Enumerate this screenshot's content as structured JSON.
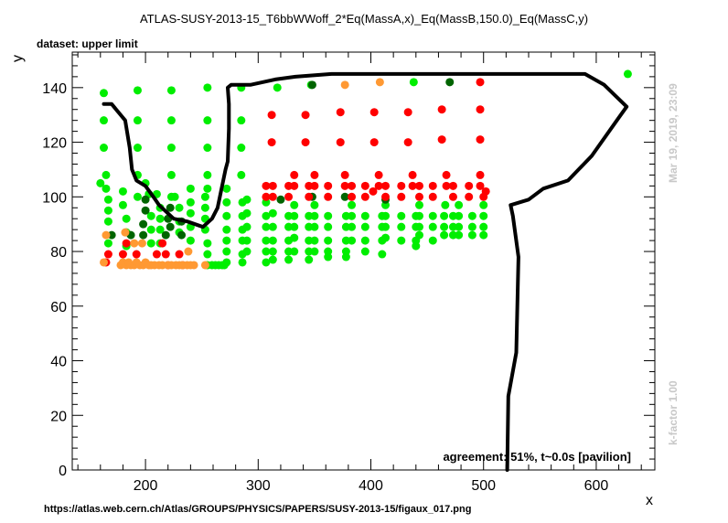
{
  "chart_data": {
    "type": "scatter",
    "title": "ATLAS-SUSY-2013-15_T6bbWWoff_2*Eq(MassA,x)_Eq(MassB,150.0)_Eq(MassC,y)",
    "subtitle": "dataset: upper limit",
    "xlabel": "x",
    "ylabel": "y",
    "xlim": [
      135,
      652
    ],
    "ylim": [
      0,
      153
    ],
    "xticks": [
      200,
      300,
      400,
      500,
      600
    ],
    "yticks": [
      0,
      20,
      40,
      60,
      80,
      100,
      120,
      140
    ],
    "grid": false,
    "timestamp": "Mar 19, 2019, 23:09",
    "kfactor": "k-factor 1.00",
    "agreement": "agreement: 51%, t~0.0s [pavilion]",
    "source_url": "https://atlas.web.cern.ch/Atlas/GROUPS/PHYSICS/PAPERS/SUSY-2013-15/figaux_017.png",
    "colors": {
      "green": "#00ee00",
      "darkgreen": "#006400",
      "red": "#ff0000",
      "orange": "#ff9933",
      "contour": "#000000"
    },
    "series": [
      {
        "color_key": "green",
        "points": [
          [
            160,
            105
          ],
          [
            165,
            108
          ],
          [
            165,
            103
          ],
          [
            167,
            99
          ],
          [
            167,
            95
          ],
          [
            167,
            91
          ],
          [
            167,
            83
          ],
          [
            163,
            118
          ],
          [
            163,
            128
          ],
          [
            163,
            138
          ],
          [
            180,
            102
          ],
          [
            180,
            97
          ],
          [
            183,
            92
          ],
          [
            183,
            87
          ],
          [
            183,
            82
          ],
          [
            193,
            100
          ],
          [
            193,
            108
          ],
          [
            193,
            118
          ],
          [
            193,
            128
          ],
          [
            193,
            139
          ],
          [
            200,
            105
          ],
          [
            203,
            101
          ],
          [
            205,
            93
          ],
          [
            205,
            88
          ],
          [
            205,
            83
          ],
          [
            210,
            101
          ],
          [
            213,
            96
          ],
          [
            213,
            92
          ],
          [
            213,
            88
          ],
          [
            213,
            83
          ],
          [
            223,
            100
          ],
          [
            223,
            108
          ],
          [
            223,
            118
          ],
          [
            223,
            128
          ],
          [
            223,
            139
          ],
          [
            226,
            100
          ],
          [
            230,
            96
          ],
          [
            230,
            91
          ],
          [
            230,
            87
          ],
          [
            240,
            103
          ],
          [
            240,
            98
          ],
          [
            240,
            94
          ],
          [
            240,
            89
          ],
          [
            240,
            84
          ],
          [
            253,
            100
          ],
          [
            253,
            96
          ],
          [
            253,
            92
          ],
          [
            253,
            88
          ],
          [
            255,
            103
          ],
          [
            255,
            83
          ],
          [
            255,
            79
          ],
          [
            255,
            75
          ],
          [
            259,
            75
          ],
          [
            262,
            75
          ],
          [
            265,
            75
          ],
          [
            268,
            75
          ],
          [
            270,
            75
          ],
          [
            272,
            103
          ],
          [
            272,
            98
          ],
          [
            272,
            93
          ],
          [
            272,
            88
          ],
          [
            272,
            84
          ],
          [
            272,
            80
          ],
          [
            272,
            76
          ],
          [
            286,
            98
          ],
          [
            286,
            93
          ],
          [
            286,
            88
          ],
          [
            286,
            84
          ],
          [
            286,
            79
          ],
          [
            286,
            76
          ],
          [
            290,
            99
          ],
          [
            290,
            94
          ],
          [
            290,
            89
          ],
          [
            290,
            84
          ],
          [
            290,
            80
          ],
          [
            307,
            98
          ],
          [
            307,
            93
          ],
          [
            307,
            89
          ],
          [
            307,
            84
          ],
          [
            307,
            80
          ],
          [
            307,
            76
          ],
          [
            313,
            94
          ],
          [
            313,
            89
          ],
          [
            313,
            84
          ],
          [
            313,
            80
          ],
          [
            313,
            77
          ],
          [
            327,
            93
          ],
          [
            327,
            89
          ],
          [
            327,
            84
          ],
          [
            327,
            80
          ],
          [
            327,
            77
          ],
          [
            332,
            97
          ],
          [
            332,
            93
          ],
          [
            332,
            89
          ],
          [
            332,
            85
          ],
          [
            332,
            80
          ],
          [
            345,
            93
          ],
          [
            345,
            89
          ],
          [
            345,
            84
          ],
          [
            345,
            80
          ],
          [
            345,
            77
          ],
          [
            350,
            97
          ],
          [
            350,
            93
          ],
          [
            350,
            89
          ],
          [
            350,
            84
          ],
          [
            350,
            80
          ],
          [
            362,
            93
          ],
          [
            362,
            89
          ],
          [
            362,
            84
          ],
          [
            362,
            80
          ],
          [
            362,
            78
          ],
          [
            378,
            93
          ],
          [
            378,
            89
          ],
          [
            378,
            84
          ],
          [
            378,
            80
          ],
          [
            378,
            78
          ],
          [
            383,
            97
          ],
          [
            383,
            93
          ],
          [
            383,
            89
          ],
          [
            383,
            84
          ],
          [
            395,
            93
          ],
          [
            395,
            89
          ],
          [
            395,
            84
          ],
          [
            395,
            80
          ],
          [
            410,
            93
          ],
          [
            410,
            89
          ],
          [
            410,
            84
          ],
          [
            410,
            79
          ],
          [
            413,
            97
          ],
          [
            413,
            93
          ],
          [
            413,
            89
          ],
          [
            413,
            85
          ],
          [
            427,
            93
          ],
          [
            427,
            89
          ],
          [
            427,
            84
          ],
          [
            440,
            93
          ],
          [
            440,
            89
          ],
          [
            440,
            84
          ],
          [
            440,
            82
          ],
          [
            443,
            97
          ],
          [
            443,
            93
          ],
          [
            443,
            89
          ],
          [
            443,
            86
          ],
          [
            455,
            93
          ],
          [
            455,
            89
          ],
          [
            455,
            84
          ],
          [
            465,
            93
          ],
          [
            465,
            89
          ],
          [
            465,
            86
          ],
          [
            466,
            97
          ],
          [
            473,
            93
          ],
          [
            473,
            89
          ],
          [
            473,
            86
          ],
          [
            478,
            97
          ],
          [
            478,
            93
          ],
          [
            478,
            89
          ],
          [
            478,
            86
          ],
          [
            490,
            93
          ],
          [
            490,
            89
          ],
          [
            490,
            86
          ],
          [
            500,
            97
          ],
          [
            500,
            93
          ],
          [
            500,
            89
          ],
          [
            500,
            86
          ],
          [
            255,
            108
          ],
          [
            255,
            118
          ],
          [
            255,
            128
          ],
          [
            255,
            140
          ],
          [
            285,
            108
          ],
          [
            285,
            118
          ],
          [
            285,
            128
          ],
          [
            285,
            140
          ],
          [
            317,
            140
          ],
          [
            347,
            141
          ],
          [
            438,
            142
          ],
          [
            628,
            145
          ]
        ]
      },
      {
        "color_key": "darkgreen",
        "points": [
          [
            170,
            86
          ],
          [
            187,
            86
          ],
          [
            198,
            86
          ],
          [
            198,
            90
          ],
          [
            200,
            95
          ],
          [
            200,
            99
          ],
          [
            218,
            86
          ],
          [
            220,
            92
          ],
          [
            222,
            89
          ],
          [
            222,
            96
          ],
          [
            232,
            86
          ],
          [
            232,
            91
          ],
          [
            320,
            99
          ],
          [
            348,
            100
          ],
          [
            377,
            100
          ],
          [
            413,
            99
          ],
          [
            470,
            142
          ],
          [
            348,
            141
          ]
        ]
      },
      {
        "color_key": "red",
        "points": [
          [
            165,
            76
          ],
          [
            167,
            79
          ],
          [
            180,
            79
          ],
          [
            183,
            83
          ],
          [
            192,
            79
          ],
          [
            210,
            79
          ],
          [
            215,
            83
          ],
          [
            218,
            79
          ],
          [
            220,
            75
          ],
          [
            230,
            79
          ],
          [
            233,
            75
          ],
          [
            307,
            104
          ],
          [
            307,
            100
          ],
          [
            313,
            104
          ],
          [
            313,
            100
          ],
          [
            327,
            104
          ],
          [
            327,
            100
          ],
          [
            332,
            108
          ],
          [
            332,
            104
          ],
          [
            345,
            104
          ],
          [
            345,
            100
          ],
          [
            350,
            108
          ],
          [
            350,
            104
          ],
          [
            362,
            104
          ],
          [
            362,
            100
          ],
          [
            377,
            108
          ],
          [
            377,
            104
          ],
          [
            383,
            104
          ],
          [
            383,
            100
          ],
          [
            395,
            104
          ],
          [
            395,
            100
          ],
          [
            407,
            108
          ],
          [
            407,
            104
          ],
          [
            413,
            104
          ],
          [
            413,
            100
          ],
          [
            427,
            104
          ],
          [
            427,
            100
          ],
          [
            437,
            108
          ],
          [
            437,
            104
          ],
          [
            443,
            104
          ],
          [
            443,
            100
          ],
          [
            455,
            104
          ],
          [
            455,
            100
          ],
          [
            467,
            108
          ],
          [
            467,
            104
          ],
          [
            473,
            104
          ],
          [
            473,
            100
          ],
          [
            487,
            104
          ],
          [
            487,
            100
          ],
          [
            497,
            108
          ],
          [
            497,
            104
          ],
          [
            500,
            100
          ],
          [
            502,
            102
          ],
          [
            312,
            120
          ],
          [
            312,
            130
          ],
          [
            342,
            120
          ],
          [
            342,
            130
          ],
          [
            373,
            120
          ],
          [
            373,
            131
          ],
          [
            403,
            120
          ],
          [
            403,
            131
          ],
          [
            433,
            120
          ],
          [
            433,
            131
          ],
          [
            463,
            121
          ],
          [
            463,
            132
          ],
          [
            497,
            121
          ],
          [
            497,
            132
          ],
          [
            497,
            142
          ],
          [
            402,
            102
          ]
        ]
      },
      {
        "color_key": "orange",
        "points": [
          [
            163,
            76
          ],
          [
            165,
            86
          ],
          [
            178,
            75
          ],
          [
            180,
            76
          ],
          [
            182,
            87
          ],
          [
            183,
            75
          ],
          [
            185,
            76
          ],
          [
            187,
            75
          ],
          [
            190,
            75
          ],
          [
            192,
            76
          ],
          [
            195,
            75
          ],
          [
            198,
            75
          ],
          [
            200,
            76
          ],
          [
            203,
            75
          ],
          [
            205,
            75
          ],
          [
            208,
            75
          ],
          [
            212,
            75
          ],
          [
            215,
            75
          ],
          [
            220,
            75
          ],
          [
            223,
            75
          ],
          [
            227,
            75
          ],
          [
            230,
            75
          ],
          [
            233,
            75
          ],
          [
            237,
            75
          ],
          [
            240,
            75
          ],
          [
            243,
            75
          ],
          [
            238,
            80
          ],
          [
            253,
            75
          ],
          [
            377,
            141
          ],
          [
            408,
            142
          ],
          [
            197,
            83
          ],
          [
            190,
            83
          ]
        ]
      }
    ],
    "contour": [
      [
        163,
        134
      ],
      [
        170,
        134
      ],
      [
        182,
        128
      ],
      [
        186,
        118
      ],
      [
        188,
        110
      ],
      [
        192,
        106
      ],
      [
        200,
        104
      ],
      [
        207,
        100
      ],
      [
        212,
        97
      ],
      [
        225,
        92
      ],
      [
        237,
        91
      ],
      [
        251,
        89
      ],
      [
        259,
        92
      ],
      [
        264,
        96
      ],
      [
        271,
        110
      ],
      [
        273,
        113
      ],
      [
        274,
        125
      ],
      [
        274,
        134
      ],
      [
        273,
        140
      ],
      [
        276,
        141
      ],
      [
        293,
        141
      ],
      [
        315,
        143
      ],
      [
        333,
        144
      ],
      [
        365,
        145
      ],
      [
        400,
        145
      ],
      [
        445,
        145
      ],
      [
        502,
        145
      ],
      [
        570,
        145
      ],
      [
        590,
        145
      ],
      [
        607,
        141
      ],
      [
        627,
        133
      ],
      [
        620,
        129
      ],
      [
        596,
        115
      ],
      [
        575,
        106
      ],
      [
        553,
        103
      ],
      [
        540,
        99
      ],
      [
        524,
        97
      ],
      [
        526,
        93
      ],
      [
        531,
        78
      ],
      [
        529,
        43
      ],
      [
        522,
        27
      ],
      [
        521,
        0
      ]
    ]
  }
}
